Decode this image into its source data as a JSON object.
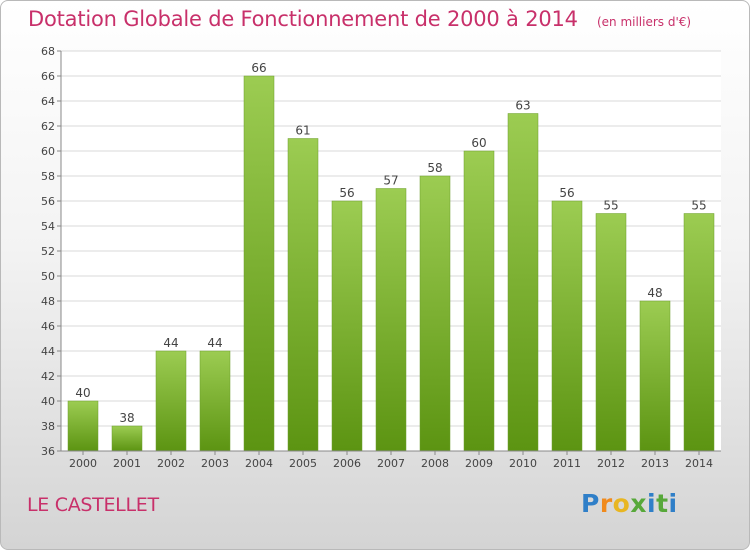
{
  "title": "Dotation Globale de Fonctionnement de 2000 à 2014",
  "subtitle": "(en milliers d'€)",
  "location": "LE CASTELLET",
  "logo": {
    "text": "Proxiti",
    "letters": [
      "P",
      "r",
      "o",
      "x",
      "i",
      "t",
      "i"
    ]
  },
  "colors": {
    "title": "#c8306a",
    "bar_top": "#9ccc52",
    "bar_bottom": "#5c9412",
    "grid": "#d8d8d8"
  },
  "chart_data": {
    "type": "bar",
    "categories": [
      "2000",
      "2001",
      "2002",
      "2003",
      "2004",
      "2005",
      "2006",
      "2007",
      "2008",
      "2009",
      "2010",
      "2011",
      "2012",
      "2013",
      "2014"
    ],
    "values": [
      40,
      38,
      44,
      44,
      66,
      61,
      56,
      57,
      58,
      60,
      63,
      56,
      55,
      48,
      55
    ],
    "ylim": [
      36,
      68
    ],
    "yticks": [
      "36",
      "38",
      "40",
      "42",
      "44",
      "46",
      "48",
      "50",
      "52",
      "54",
      "56",
      "58",
      "60",
      "62",
      "64",
      "66",
      "68"
    ],
    "grid": true
  }
}
